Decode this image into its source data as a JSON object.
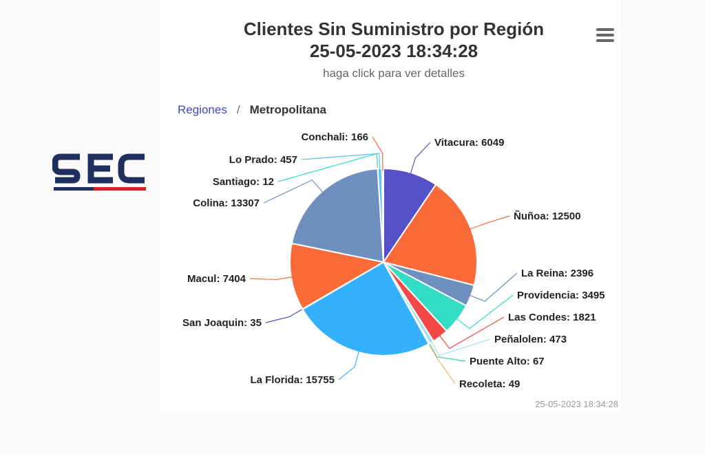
{
  "header": {
    "title_line1": "Clientes Sin Suministro por Región",
    "title_line2": "25-05-2023 18:34:28",
    "subtitle": "haga click para ver detalles"
  },
  "breadcrumb": {
    "parent": "Regiones",
    "separator": "/",
    "current": "Metropolitana"
  },
  "logo": {
    "text": "SEC",
    "colors": [
      "#1f2f5e",
      "#d4202a"
    ]
  },
  "footer": {
    "timestamp": "25-05-2023 18:34:28"
  },
  "menu": {
    "icon": "hamburger-menu-icon"
  },
  "chart_data": {
    "type": "pie",
    "title": "Clientes Sin Suministro por Región",
    "subtitle": "haga click para ver detalles",
    "slices": [
      {
        "name": "Vitacura",
        "value": 6049,
        "color": "#5550c8"
      },
      {
        "name": "Ñuñoa",
        "value": 12500,
        "color": "#fb6b3a"
      },
      {
        "name": "La Reina",
        "value": 2396,
        "color": "#6f8fbf"
      },
      {
        "name": "Providencia",
        "value": 3495,
        "color": "#33dcc4"
      },
      {
        "name": "Las Condes",
        "value": 1821,
        "color": "#f44848"
      },
      {
        "name": "Peñalolen",
        "value": 473,
        "color": "#9fe3ee"
      },
      {
        "name": "Puente Alto",
        "value": 67,
        "color": "#3fd29a"
      },
      {
        "name": "Recoleta",
        "value": 49,
        "color": "#f3b06a"
      },
      {
        "name": "La Florida",
        "value": 15755,
        "color": "#33b1fc"
      },
      {
        "name": "San Joaquin",
        "value": 35,
        "color": "#4a4fc4"
      },
      {
        "name": "Macul",
        "value": 7404,
        "color": "#fb6b3a"
      },
      {
        "name": "Colina",
        "value": 13307,
        "color": "#6f8fbf"
      },
      {
        "name": "Santiago",
        "value": 12,
        "color": "#33dcc4"
      },
      {
        "name": "Lo Prado",
        "value": 457,
        "color": "#57c3f2"
      },
      {
        "name": "Conchali",
        "value": 166,
        "color": "#f26a3a"
      }
    ]
  }
}
